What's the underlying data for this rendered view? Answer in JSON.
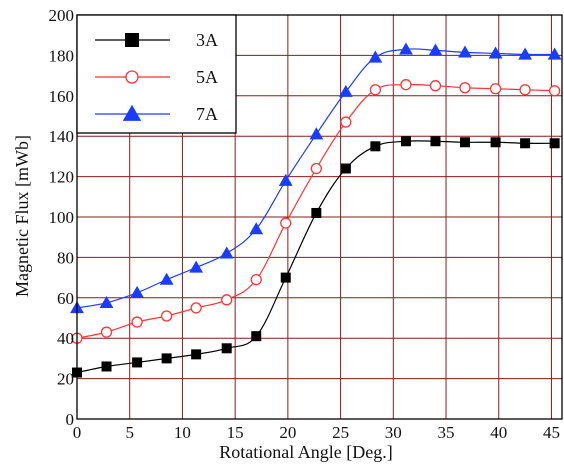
{
  "chart_data": {
    "type": "line",
    "xlabel": {
      "main": "Rotational Angle ",
      "unit": "[Deg.]"
    },
    "ylabel": {
      "main": "Magnetic Flux ",
      "unit": "[mWb]"
    },
    "xlim": [
      0,
      46
    ],
    "ylim": [
      0,
      200
    ],
    "xticks": [
      0,
      5,
      10,
      15,
      20,
      25,
      30,
      35,
      40,
      45
    ],
    "yticks": [
      0,
      20,
      40,
      60,
      80,
      100,
      120,
      140,
      160,
      180,
      200
    ],
    "grid": true,
    "legend_position": "top-left",
    "series": [
      {
        "name": "3A",
        "color": "#000000",
        "marker": "square",
        "x": [
          0,
          2.8,
          5.7,
          8.5,
          11.3,
          14.2,
          17,
          19.8,
          22.7,
          25.5,
          28.3,
          31.2,
          34,
          36.8,
          39.7,
          42.5,
          45.3
        ],
        "y": [
          23,
          26,
          28,
          30,
          32,
          35,
          41,
          70,
          102,
          124,
          135,
          137.5,
          137.5,
          137,
          137,
          136.5,
          136.5
        ]
      },
      {
        "name": "5A",
        "color": "#ff3333",
        "marker": "circle-open",
        "x": [
          0,
          2.8,
          5.7,
          8.5,
          11.3,
          14.2,
          17,
          19.8,
          22.7,
          25.5,
          28.3,
          31.2,
          34,
          36.8,
          39.7,
          42.5,
          45.3
        ],
        "y": [
          40,
          43,
          48,
          51,
          55,
          59,
          69,
          97,
          124,
          147,
          163,
          165.5,
          165,
          164,
          163.5,
          163,
          162.5
        ]
      },
      {
        "name": "7A",
        "color": "#1a3cff",
        "marker": "triangle",
        "x": [
          0,
          2.8,
          5.7,
          8.5,
          11.3,
          14.2,
          17,
          19.8,
          22.7,
          25.5,
          28.3,
          31.2,
          34,
          36.8,
          39.7,
          42.5,
          45.3
        ],
        "y": [
          55,
          57.5,
          62.5,
          69,
          75,
          82,
          94,
          118,
          141,
          162,
          179,
          183,
          182.5,
          181.5,
          181,
          180.5,
          180.5
        ]
      }
    ]
  }
}
